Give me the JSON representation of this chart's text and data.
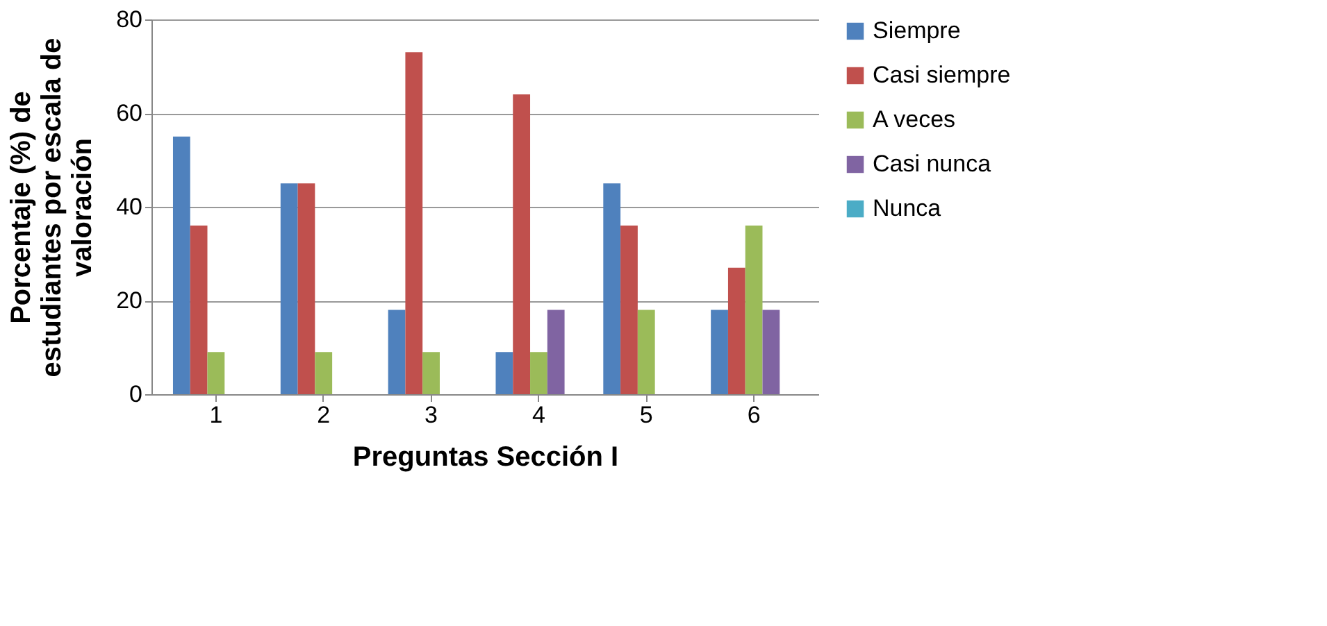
{
  "chart_data": {
    "type": "bar",
    "xlabel": "Preguntas Sección I",
    "ylabel": "Porcentaje (%) de\nestudiantes por escala de\nvaloración",
    "categories": [
      "1",
      "2",
      "3",
      "4",
      "5",
      "6"
    ],
    "series": [
      {
        "name": "Siempre",
        "color": "#4f81bd",
        "values": [
          55,
          45,
          18,
          9,
          45,
          18
        ]
      },
      {
        "name": "Casi siempre",
        "color": "#c0504d",
        "values": [
          36,
          45,
          73,
          64,
          36,
          27
        ]
      },
      {
        "name": "A veces",
        "color": "#9bbb59",
        "values": [
          9,
          9,
          9,
          9,
          18,
          36
        ]
      },
      {
        "name": "Casi nunca",
        "color": "#8064a2",
        "values": [
          0,
          0,
          0,
          18,
          0,
          18
        ]
      },
      {
        "name": "Nunca",
        "color": "#4bacc6",
        "values": [
          0,
          0,
          0,
          0,
          0,
          0
        ]
      }
    ],
    "ylim": [
      0,
      80
    ],
    "yticks": [
      0,
      20,
      40,
      60,
      80
    ],
    "grid": "y",
    "legend": "right"
  }
}
